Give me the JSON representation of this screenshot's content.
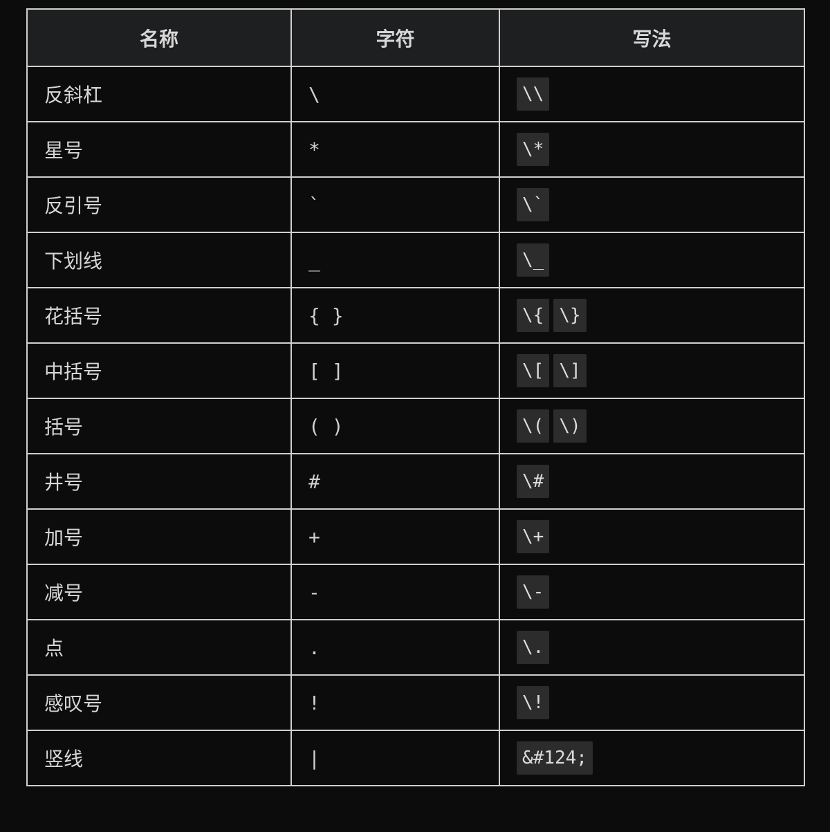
{
  "table": {
    "headers": [
      "名称",
      "字符",
      "写法"
    ],
    "rows": [
      {
        "name": "反斜杠",
        "char": "\\",
        "codes": [
          "\\\\"
        ]
      },
      {
        "name": "星号",
        "char": "*",
        "codes": [
          "\\*"
        ]
      },
      {
        "name": "反引号",
        "char": "`",
        "codes": [
          "\\`"
        ]
      },
      {
        "name": "下划线",
        "char": "_",
        "codes": [
          "\\_"
        ]
      },
      {
        "name": "花括号",
        "char": "{ }",
        "codes": [
          "\\{",
          "\\}"
        ]
      },
      {
        "name": "中括号",
        "char": "[ ]",
        "codes": [
          "\\[",
          "\\]"
        ]
      },
      {
        "name": "括号",
        "char": "( )",
        "codes": [
          "\\(",
          "\\)"
        ]
      },
      {
        "name": "井号",
        "char": "#",
        "codes": [
          "\\#"
        ]
      },
      {
        "name": "加号",
        "char": "+",
        "codes": [
          "\\+"
        ]
      },
      {
        "name": "减号",
        "char": "-",
        "codes": [
          "\\-"
        ]
      },
      {
        "name": "点",
        "char": ".",
        "codes": [
          "\\."
        ]
      },
      {
        "name": "感叹号",
        "char": "!",
        "codes": [
          "\\!"
        ]
      },
      {
        "name": "竖线",
        "char": "|",
        "codes": [
          "&#124;"
        ]
      }
    ]
  }
}
